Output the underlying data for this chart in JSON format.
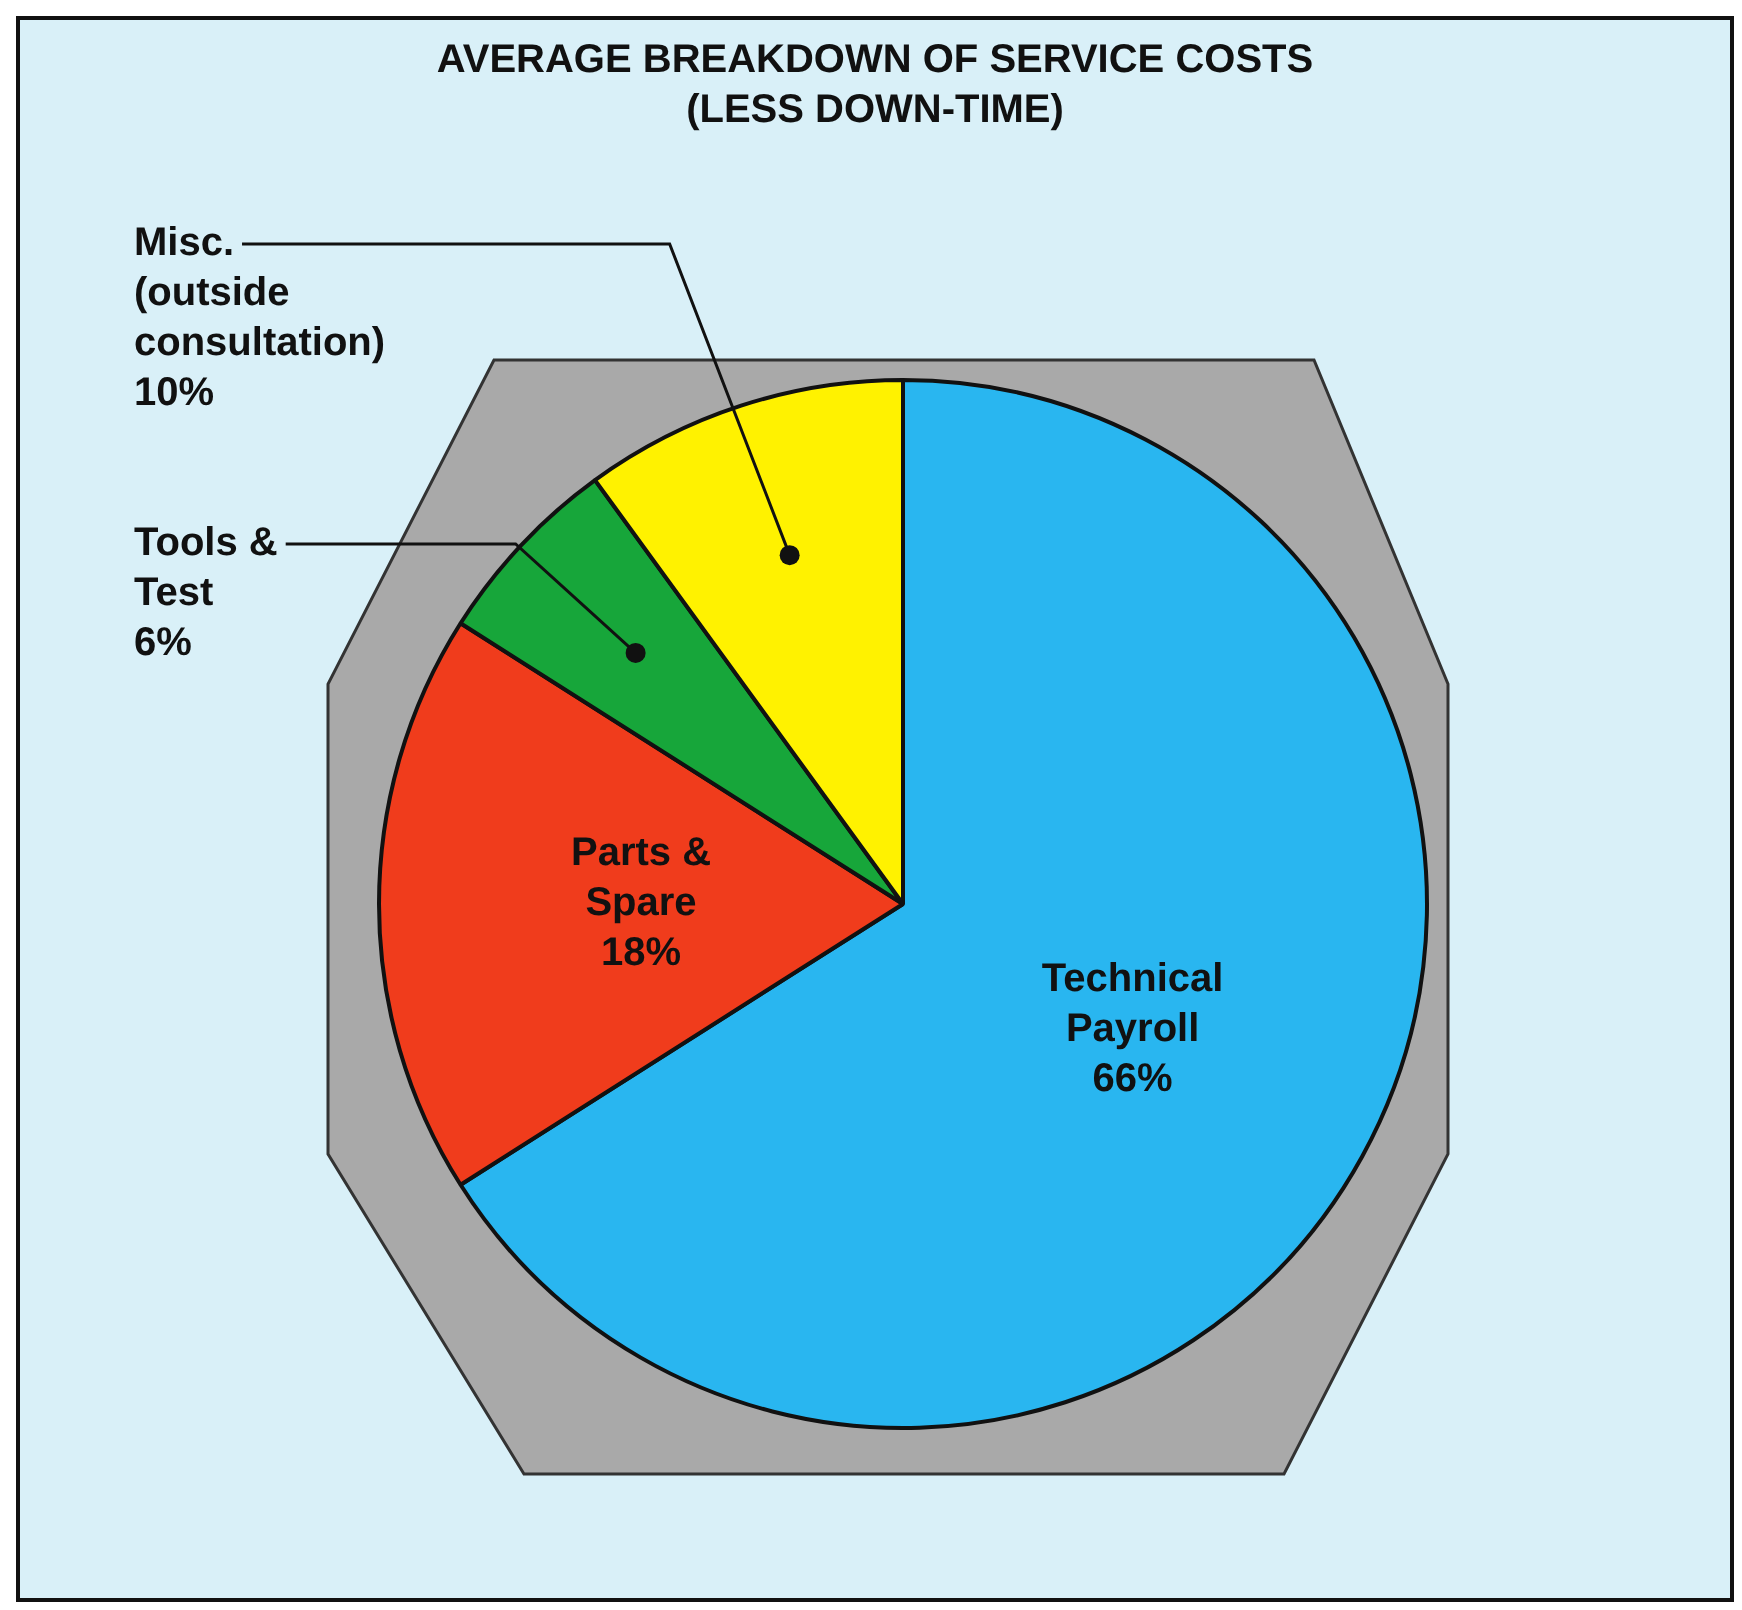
{
  "chart_data": {
    "type": "pie",
    "title": "AVERAGE BREAKDOWN OF SERVICE COSTS",
    "subtitle": "(LESS DOWN-TIME)",
    "categories": [
      "Technical Payroll",
      "Parts & Spare",
      "Tools & Test",
      "Misc. (outside consultation)"
    ],
    "values": [
      66,
      18,
      6,
      10
    ],
    "colors": [
      "#29b6f0",
      "#f03c1c",
      "#17a63a",
      "#fff200"
    ],
    "value_labels": [
      "66%",
      "18%",
      "6%",
      "10%"
    ]
  }
}
